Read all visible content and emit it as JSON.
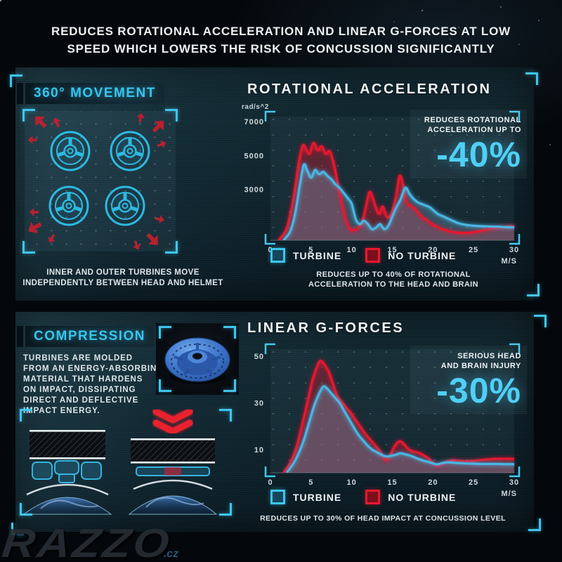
{
  "header": {
    "line1": "REDUCES ROTATIONAL ACCELERATION AND LINEAR G-FORCES AT LOW",
    "line2": "SPEED WHICH LOWERS THE RISK OF CONCUSSION SIGNIFICANTLY"
  },
  "colors": {
    "accent_cyan": "#3cc6ee",
    "accent_red": "#e51c30",
    "curve_blue": "#4ab6e4",
    "text_white": "#edf2f4"
  },
  "movement": {
    "title": "360° MOVEMENT",
    "caption_line1": "INNER AND OUTER TURBINES MOVE",
    "caption_line2": "INDEPENDENTLY BETWEEN HEAD AND HELMET"
  },
  "compression": {
    "title": "COMPRESSION",
    "lines": [
      "TURBINES ARE MOLDED",
      "FROM AN ENERGY-ABSORBING",
      "MATERIAL THAT HARDENS",
      "ON IMPACT, DISSIPATING",
      "DIRECT AND DEFLECTIVE",
      "IMPACT ENERGY."
    ]
  },
  "watermark": {
    "name": "RAZZO",
    "suffix": ".cz"
  },
  "chart_data": [
    {
      "type": "area",
      "title": "ROTATIONAL ACCELERATION",
      "ylabel": "rad/s^2",
      "xlabel": "M/S",
      "xlim": [
        0,
        30
      ],
      "ylim": [
        0,
        7300
      ],
      "xticks": [
        0,
        5,
        10,
        15,
        20,
        25,
        30
      ],
      "yticks": [
        3000,
        5000,
        7000
      ],
      "grid": "dotted",
      "legend_position": "bottom",
      "legend": [
        {
          "label": "TURBINE",
          "color": "#3cc6ee"
        },
        {
          "label": "NO TURBINE",
          "color": "#e51c30"
        }
      ],
      "annotation": {
        "line1": "REDUCES ROTATIONAL",
        "line2": "ACCELERATION UP TO",
        "value": "-40%"
      },
      "caption_line1": "REDUCES UP TO 40% OF ROTATIONAL",
      "caption_line2": "ACCELERATION TO THE HEAD AND BRAIN",
      "series": [
        {
          "name": "NO TURBINE",
          "color": "#e8192e",
          "fill": "rgba(229,24,46,0.34)",
          "points": [
            [
              1,
              0
            ],
            [
              2,
              700
            ],
            [
              2.8,
              2400
            ],
            [
              3.5,
              4600
            ],
            [
              4,
              5600
            ],
            [
              4.4,
              5350
            ],
            [
              4.8,
              5100
            ],
            [
              5.3,
              5750
            ],
            [
              5.8,
              5300
            ],
            [
              6.3,
              5550
            ],
            [
              6.8,
              5100
            ],
            [
              7.3,
              5250
            ],
            [
              7.8,
              4500
            ],
            [
              8.3,
              3300
            ],
            [
              8.8,
              2200
            ],
            [
              9.3,
              1200
            ],
            [
              9.8,
              650
            ],
            [
              10.3,
              600
            ],
            [
              10.8,
              750
            ],
            [
              11.3,
              1100
            ],
            [
              11.8,
              2100
            ],
            [
              12.2,
              2850
            ],
            [
              12.6,
              2500
            ],
            [
              13,
              1900
            ],
            [
              13.4,
              1550
            ],
            [
              13.8,
              2000
            ],
            [
              14.2,
              1500
            ],
            [
              14.6,
              1350
            ],
            [
              15,
              1700
            ],
            [
              15.5,
              2700
            ],
            [
              15.9,
              3800
            ],
            [
              16.3,
              3300
            ],
            [
              16.7,
              2300
            ],
            [
              17.2,
              2050
            ],
            [
              17.7,
              1900
            ],
            [
              18.2,
              1600
            ],
            [
              18.7,
              1350
            ],
            [
              19.2,
              1200
            ],
            [
              19.7,
              1000
            ],
            [
              20.5,
              800
            ],
            [
              21.5,
              600
            ],
            [
              22.5,
              480
            ],
            [
              23.5,
              430
            ],
            [
              24.5,
              450
            ],
            [
              25.5,
              520
            ],
            [
              26.5,
              620
            ],
            [
              27.5,
              720
            ],
            [
              28.5,
              780
            ],
            [
              29.5,
              820
            ],
            [
              30,
              830
            ]
          ]
        },
        {
          "name": "TURBINE",
          "color": "#4ab6e4",
          "fill": "rgba(125,175,210,0.30)",
          "points": [
            [
              1.6,
              0
            ],
            [
              2.4,
              500
            ],
            [
              3,
              1500
            ],
            [
              3.6,
              3200
            ],
            [
              4.1,
              4450
            ],
            [
              4.5,
              4150
            ],
            [
              5,
              3700
            ],
            [
              5.5,
              4150
            ],
            [
              6,
              3900
            ],
            [
              6.5,
              4050
            ],
            [
              7,
              3800
            ],
            [
              7.5,
              3600
            ],
            [
              8,
              3300
            ],
            [
              8.5,
              3100
            ],
            [
              9,
              2800
            ],
            [
              9.5,
              2500
            ],
            [
              10,
              2150
            ],
            [
              10.5,
              1250
            ],
            [
              11,
              950
            ],
            [
              11.5,
              1150
            ],
            [
              12,
              950
            ],
            [
              12.5,
              650
            ],
            [
              13,
              750
            ],
            [
              13.5,
              950
            ],
            [
              14,
              650
            ],
            [
              14.5,
              850
            ],
            [
              15,
              1400
            ],
            [
              15.5,
              1950
            ],
            [
              16,
              2400
            ],
            [
              16.6,
              3100
            ],
            [
              17.1,
              2750
            ],
            [
              17.6,
              2450
            ],
            [
              18.1,
              2250
            ],
            [
              18.6,
              2150
            ],
            [
              19.1,
              2050
            ],
            [
              19.6,
              1950
            ],
            [
              20.1,
              1750
            ],
            [
              20.6,
              1550
            ],
            [
              21.3,
              1400
            ],
            [
              22.2,
              1200
            ],
            [
              23.2,
              1000
            ],
            [
              24.2,
              900
            ],
            [
              25.2,
              850
            ],
            [
              26.5,
              820
            ],
            [
              28,
              800
            ],
            [
              29,
              770
            ],
            [
              30,
              760
            ]
          ]
        }
      ]
    },
    {
      "type": "area",
      "title": "LINEAR G-FORCES",
      "ylabel": "",
      "xlabel": "M/S",
      "xlim": [
        0,
        30
      ],
      "ylim": [
        0,
        53
      ],
      "xticks": [
        0,
        5,
        10,
        15,
        20,
        25,
        30
      ],
      "yticks": [
        10,
        30,
        50
      ],
      "grid": "dotted",
      "legend_position": "bottom",
      "legend": [
        {
          "label": "TURBINE",
          "color": "#3cc6ee"
        },
        {
          "label": "NO TURBINE",
          "color": "#e51c30"
        }
      ],
      "annotation": {
        "line1": "SERIOUS HEAD",
        "line2": "AND BRAIN INJURY",
        "value": "-30%"
      },
      "caption_line1": "REDUCES UP TO 30% OF HEAD IMPACT AT CONCUSSION LEVEL",
      "caption_line2": "",
      "series": [
        {
          "name": "NO TURBINE",
          "color": "#e8192e",
          "fill": "rgba(229,24,46,0.34)",
          "points": [
            [
              1.6,
              0
            ],
            [
              2.4,
              4
            ],
            [
              3.2,
              11
            ],
            [
              4,
              22
            ],
            [
              4.6,
              31
            ],
            [
              5.2,
              40
            ],
            [
              5.8,
              46
            ],
            [
              6.2,
              48
            ],
            [
              6.7,
              46
            ],
            [
              7.2,
              43
            ],
            [
              7.7,
              38
            ],
            [
              8.2,
              33
            ],
            [
              8.7,
              30.5
            ],
            [
              9.2,
              28.5
            ],
            [
              9.7,
              26.5
            ],
            [
              10.2,
              24
            ],
            [
              10.7,
              21.5
            ],
            [
              11.2,
              19
            ],
            [
              11.7,
              16.5
            ],
            [
              12.2,
              14.5
            ],
            [
              12.7,
              12.5
            ],
            [
              13.2,
              10.5
            ],
            [
              13.7,
              8
            ],
            [
              14.1,
              5.5
            ],
            [
              14.5,
              6
            ],
            [
              15,
              9.5
            ],
            [
              15.5,
              12.5
            ],
            [
              16,
              13.5
            ],
            [
              16.5,
              12
            ],
            [
              17,
              10
            ],
            [
              17.5,
              9.2
            ],
            [
              18,
              8.8
            ],
            [
              18.5,
              8.2
            ],
            [
              19,
              7.2
            ],
            [
              19.5,
              6
            ],
            [
              20,
              4.2
            ],
            [
              20.5,
              3
            ],
            [
              21,
              3.6
            ],
            [
              21.5,
              4.4
            ],
            [
              22,
              5
            ],
            [
              22.5,
              5.4
            ],
            [
              23,
              5.2
            ],
            [
              24,
              4.9
            ],
            [
              25,
              5.1
            ],
            [
              26,
              5.5
            ],
            [
              27,
              5.8
            ],
            [
              28,
              6
            ],
            [
              29,
              6
            ],
            [
              30,
              6
            ]
          ]
        },
        {
          "name": "TURBINE",
          "color": "#4ab6e4",
          "fill": "rgba(125,175,210,0.30)",
          "points": [
            [
              2,
              0
            ],
            [
              3,
              5
            ],
            [
              4,
              13
            ],
            [
              4.8,
              22
            ],
            [
              5.4,
              29
            ],
            [
              6,
              34
            ],
            [
              6.5,
              37
            ],
            [
              7,
              36
            ],
            [
              7.5,
              34
            ],
            [
              8,
              32
            ],
            [
              8.5,
              30
            ],
            [
              9,
              27
            ],
            [
              9.5,
              24
            ],
            [
              10,
              21
            ],
            [
              10.5,
              18
            ],
            [
              11,
              15.5
            ],
            [
              11.5,
              13.5
            ],
            [
              12,
              11.5
            ],
            [
              12.5,
              10
            ],
            [
              13,
              9
            ],
            [
              13.5,
              8
            ],
            [
              14,
              7.2
            ],
            [
              14.5,
              7
            ],
            [
              15,
              7.4
            ],
            [
              15.5,
              7.8
            ],
            [
              16,
              8.4
            ],
            [
              16.5,
              8
            ],
            [
              17,
              7.6
            ],
            [
              17.5,
              7
            ],
            [
              18,
              6.2
            ],
            [
              18.5,
              5.6
            ],
            [
              19,
              5
            ],
            [
              19.5,
              4.6
            ],
            [
              20,
              4
            ],
            [
              20.5,
              3.6
            ],
            [
              21,
              4
            ],
            [
              21.5,
              4.4
            ],
            [
              22,
              4.5
            ],
            [
              23,
              4.2
            ],
            [
              24,
              4
            ],
            [
              25,
              3.9
            ],
            [
              26,
              3.8
            ],
            [
              27,
              3.8
            ],
            [
              28,
              3.8
            ],
            [
              29,
              3.7
            ],
            [
              30,
              3.7
            ]
          ]
        }
      ]
    }
  ]
}
